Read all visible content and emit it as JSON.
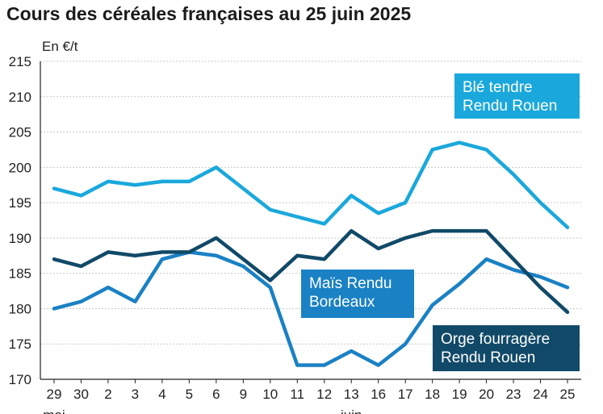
{
  "title": "Cours des céréales françaises au 25 juin 2025",
  "unit_label": "En €/t",
  "colors": {
    "ble": "#1aa8dc",
    "mais": "#1a81c4",
    "orge": "#114a68",
    "grid": "#c8c8c8",
    "axis": "#222222"
  },
  "legend": {
    "ble": {
      "line1": "Blé tendre",
      "line2": "Rendu Rouen"
    },
    "mais": {
      "line1": "Maïs Rendu",
      "line2": "Bordeaux"
    },
    "orge": {
      "line1": "Orge fourragère",
      "line2": "Rendu Rouen"
    }
  },
  "chart_data": {
    "type": "line",
    "title": "Cours des céréales françaises au 25 juin 2025",
    "ylabel": "En €/t",
    "ylim": [
      170,
      215
    ],
    "yticks": [
      170,
      175,
      180,
      185,
      190,
      195,
      200,
      205,
      210,
      215
    ],
    "categories": [
      "29",
      "30",
      "2",
      "3",
      "4",
      "5",
      "6",
      "9",
      "10",
      "11",
      "12",
      "13",
      "16",
      "17",
      "18",
      "19",
      "20",
      "23",
      "24",
      "25"
    ],
    "month_labels": [
      "mai",
      "juin"
    ],
    "series": [
      {
        "name": "Blé tendre Rendu Rouen",
        "key": "ble",
        "values": [
          197,
          196,
          198,
          197.5,
          198,
          198,
          200,
          197,
          194,
          193,
          192,
          196,
          193.5,
          195,
          202.5,
          203.5,
          202.5,
          199,
          195,
          191.5
        ]
      },
      {
        "name": "Maïs Rendu Bordeaux",
        "key": "mais",
        "values": [
          180,
          181,
          183,
          181,
          187,
          188,
          187.5,
          186,
          183,
          172,
          172,
          174,
          172,
          175,
          180.5,
          183.5,
          187,
          185.5,
          184.5,
          183
        ]
      },
      {
        "name": "Orge fourragère Rendu Rouen",
        "key": "orge",
        "values": [
          187,
          186,
          188,
          187.5,
          188,
          188,
          190,
          187,
          184,
          187.5,
          187,
          191,
          188.5,
          190,
          191,
          191,
          191,
          187,
          183,
          179.5
        ]
      }
    ]
  }
}
